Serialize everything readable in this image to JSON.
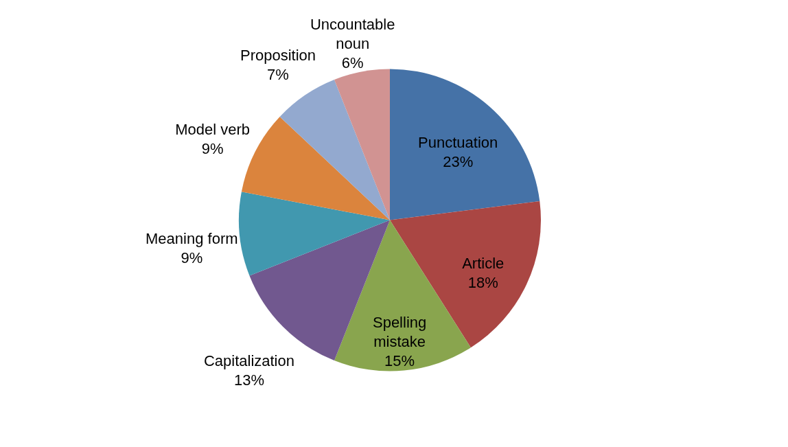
{
  "chart_data": {
    "type": "pie",
    "categories": [
      "Punctuation",
      "Article",
      "Spelling mistake",
      "Capitalization",
      "Meaning form",
      "Model verb",
      "Proposition",
      "Uncountable noun"
    ],
    "values": [
      23,
      18,
      15,
      13,
      9,
      9,
      7,
      6
    ],
    "value_labels": [
      "23%",
      "18%",
      "15%",
      "13%",
      "9%",
      "9%",
      "7%",
      "6%"
    ],
    "colors": [
      "#4572a7",
      "#aa4643",
      "#89a54e",
      "#71588f",
      "#4198af",
      "#db843d",
      "#93a9cf",
      "#d19392"
    ],
    "legend": false
  }
}
